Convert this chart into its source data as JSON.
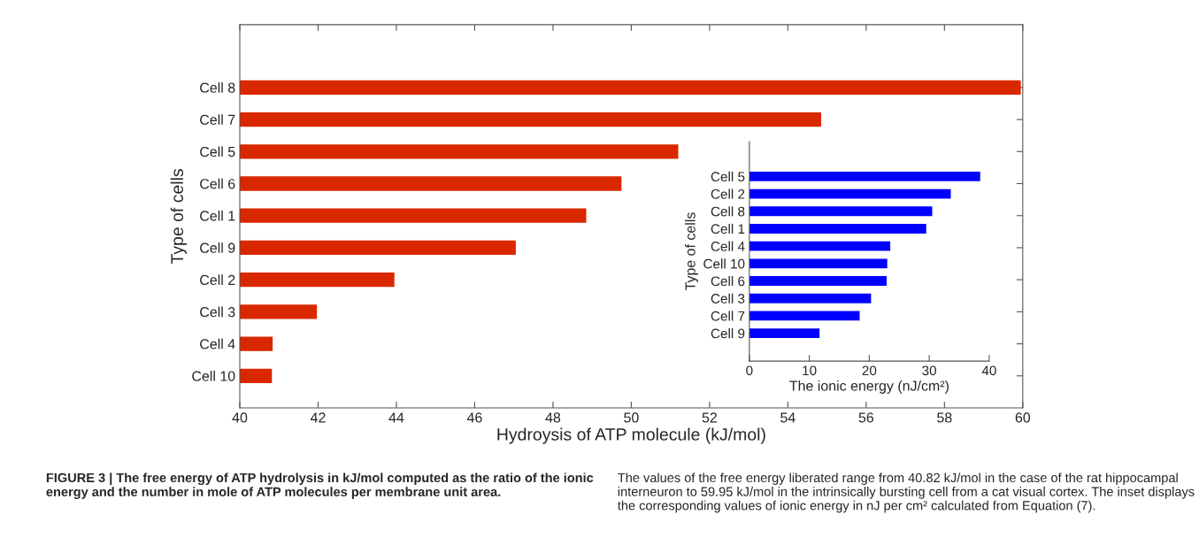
{
  "chart_data": [
    {
      "type": "bar",
      "orientation": "horizontal",
      "categories": [
        "Cell 8",
        "Cell 7",
        "Cell 5",
        "Cell 6",
        "Cell 1",
        "Cell 9",
        "Cell 2",
        "Cell 3",
        "Cell 4",
        "Cell 10"
      ],
      "values": [
        59.95,
        54.85,
        51.2,
        49.75,
        48.85,
        47.05,
        43.95,
        41.97,
        40.84,
        40.82
      ],
      "color": "#d92800",
      "xlim": [
        40,
        60
      ],
      "xticks": [
        40,
        42,
        44,
        46,
        48,
        50,
        52,
        54,
        56,
        58,
        60
      ],
      "xlabel": "Hydroysis of ATP molecule (kJ/mol)",
      "ylabel": "Type of cells",
      "grid": false,
      "legend": false,
      "annotations": [
        "FIGURE 3 | The free energy of ATP hydrolysis in kJ/mol computed as the ratio of the ionic energy and the number in mole of ATP molecules per membrane unit area.",
        "The values of the free energy liberated range from 40.82 kJ/mol in the case of the rat hippocampal interneuron to 59.95 kJ/mol in the intrinsically bursting cell from a cat visual cortex. The inset displays the corresponding values of ionic energy in nJ per cm² calculated from Equation (7)."
      ]
    },
    {
      "type": "bar",
      "orientation": "horizontal",
      "categories": [
        "Cell 5",
        "Cell 2",
        "Cell 8",
        "Cell 1",
        "Cell 4",
        "Cell 10",
        "Cell 6",
        "Cell 3",
        "Cell 7",
        "Cell 9"
      ],
      "values": [
        38.5,
        33.6,
        30.5,
        29.5,
        23.5,
        23.0,
        22.9,
        20.3,
        18.4,
        11.7
      ],
      "color": "#0000ff",
      "xlim": [
        0,
        40
      ],
      "xticks": [
        0,
        10,
        20,
        30,
        40
      ],
      "xlabel": "The ionic energy (nJ/cm²)",
      "ylabel": "Type of cells",
      "grid": false,
      "legend": false
    }
  ]
}
